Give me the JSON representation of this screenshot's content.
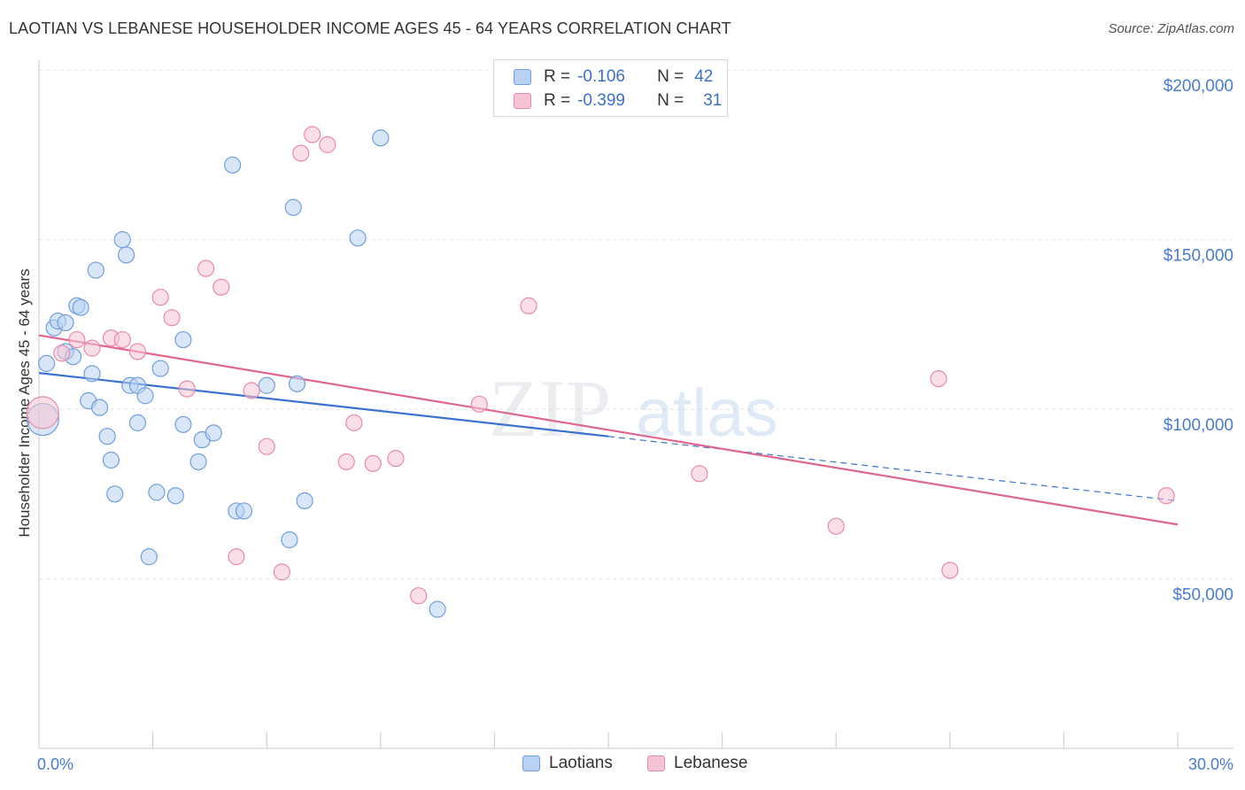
{
  "header": {
    "title": "LAOTIAN VS LEBANESE HOUSEHOLDER INCOME AGES 45 - 64 YEARS CORRELATION CHART",
    "source": "Source: ZipAtlas.com"
  },
  "watermark": {
    "zip": "ZIP",
    "atlas": "atlas"
  },
  "colors": {
    "laotians_fill": "#b9d1f3",
    "laotians_stroke": "#6f9fdc",
    "laotians_line": "#3a72cc",
    "lebanese_fill": "#f7c4d4",
    "lebanese_stroke": "#e88aa8",
    "lebanese_line": "#e0668f",
    "axis_text": "#4a7cc9",
    "grid": "#e4e4e4"
  },
  "legend": {
    "rows": [
      {
        "r_label": "R =",
        "r_value": "-0.106",
        "n_label": "N =",
        "n_value": "42"
      },
      {
        "r_label": "R =",
        "r_value": "-0.399",
        "n_label": "N =",
        "n_value": "31"
      }
    ]
  },
  "bottom_legend": {
    "items": [
      "Laotians",
      "Lebanese"
    ]
  },
  "chart_data": {
    "type": "scatter",
    "ylabel": "Householder Income Ages 45 - 64 years",
    "x_tick_labels": [
      "0.0%",
      "30.0%"
    ],
    "y_tick_labels": [
      "$50,000",
      "$100,000",
      "$150,000",
      "$200,000"
    ],
    "y_ticks": [
      50000,
      100000,
      150000,
      200000
    ],
    "xlim": [
      0,
      30
    ],
    "ylim": [
      0,
      205000
    ],
    "grid": true,
    "series": [
      {
        "name": "Laotians",
        "points": [
          [
            0.2,
            113500
          ],
          [
            0.4,
            124000
          ],
          [
            0.5,
            126000
          ],
          [
            0.7,
            117000
          ],
          [
            0.7,
            125500
          ],
          [
            0.9,
            115500
          ],
          [
            1.0,
            130500
          ],
          [
            1.1,
            130000
          ],
          [
            1.3,
            102500
          ],
          [
            1.4,
            110500
          ],
          [
            1.5,
            141000
          ],
          [
            1.6,
            100500
          ],
          [
            1.8,
            92000
          ],
          [
            1.9,
            85000
          ],
          [
            2.0,
            75000
          ],
          [
            2.2,
            150000
          ],
          [
            2.3,
            145500
          ],
          [
            2.4,
            107000
          ],
          [
            2.6,
            107000
          ],
          [
            2.6,
            96000
          ],
          [
            2.8,
            104000
          ],
          [
            2.9,
            56500
          ],
          [
            3.1,
            75500
          ],
          [
            3.2,
            112000
          ],
          [
            3.6,
            74500
          ],
          [
            3.8,
            120500
          ],
          [
            3.8,
            95500
          ],
          [
            4.2,
            84500
          ],
          [
            4.3,
            91000
          ],
          [
            4.6,
            93000
          ],
          [
            5.1,
            172000
          ],
          [
            5.2,
            70000
          ],
          [
            5.4,
            70000
          ],
          [
            6.0,
            107000
          ],
          [
            6.6,
            61500
          ],
          [
            6.7,
            159500
          ],
          [
            6.8,
            107500
          ],
          [
            7.0,
            73000
          ],
          [
            8.4,
            150500
          ],
          [
            9.0,
            180000
          ],
          [
            10.5,
            41000
          ],
          [
            0.1,
            97000
          ]
        ],
        "trend": {
          "x": [
            0,
            15
          ],
          "y": [
            110700,
            92000
          ]
        },
        "trend_dashed": {
          "x": [
            15,
            30
          ],
          "y": [
            92000,
            73000
          ]
        }
      },
      {
        "name": "Lebanese",
        "points": [
          [
            0.1,
            99000
          ],
          [
            0.6,
            116500
          ],
          [
            1.0,
            120500
          ],
          [
            1.4,
            118000
          ],
          [
            1.9,
            121000
          ],
          [
            2.2,
            120500
          ],
          [
            2.6,
            117000
          ],
          [
            3.2,
            133000
          ],
          [
            3.5,
            127000
          ],
          [
            3.9,
            106000
          ],
          [
            4.4,
            141500
          ],
          [
            4.8,
            136000
          ],
          [
            5.2,
            56500
          ],
          [
            5.6,
            105500
          ],
          [
            6.0,
            89000
          ],
          [
            6.4,
            52000
          ],
          [
            6.9,
            175500
          ],
          [
            7.2,
            181000
          ],
          [
            7.6,
            178000
          ],
          [
            8.1,
            84500
          ],
          [
            8.3,
            96000
          ],
          [
            8.8,
            84000
          ],
          [
            9.4,
            85500
          ],
          [
            10.0,
            45000
          ],
          [
            11.6,
            101500
          ],
          [
            12.9,
            130500
          ],
          [
            17.4,
            81000
          ],
          [
            21.0,
            65500
          ],
          [
            23.7,
            109000
          ],
          [
            24.0,
            52500
          ],
          [
            29.7,
            74500
          ]
        ],
        "trend": {
          "x": [
            0,
            30
          ],
          "y": [
            121800,
            66000
          ]
        }
      }
    ]
  }
}
